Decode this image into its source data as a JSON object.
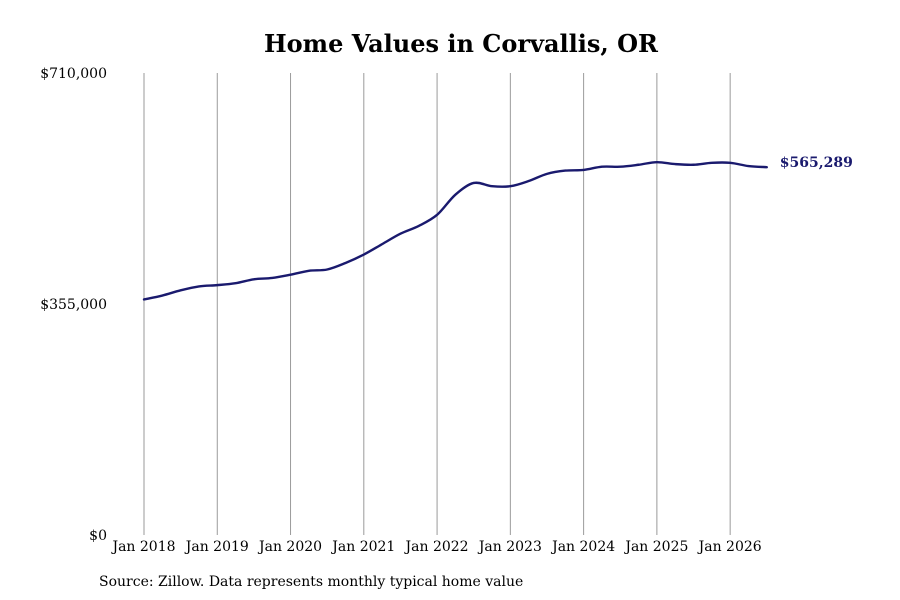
{
  "chart_data": {
    "type": "line",
    "title": "Home Values in Corvallis, OR",
    "xlabel": "",
    "ylabel": "",
    "source_note": "Source: Zillow. Data represents monthly typical home value",
    "ylim": [
      0,
      710000
    ],
    "y_ticks": [
      {
        "value": 0,
        "label": "$0"
      },
      {
        "value": 355000,
        "label": "$355,000"
      },
      {
        "value": 710000,
        "label": "$710,000"
      }
    ],
    "x_ticks": [
      {
        "value": "2018-01",
        "label": "Jan 2018"
      },
      {
        "value": "2019-01",
        "label": "Jan 2019"
      },
      {
        "value": "2020-01",
        "label": "Jan 2020"
      },
      {
        "value": "2021-01",
        "label": "Jan 2021"
      },
      {
        "value": "2022-01",
        "label": "Jan 2022"
      },
      {
        "value": "2023-01",
        "label": "Jan 2023"
      },
      {
        "value": "2024-01",
        "label": "Jan 2024"
      },
      {
        "value": "2025-01",
        "label": "Jan 2025"
      },
      {
        "value": "2026-01",
        "label": "Jan 2026"
      }
    ],
    "xlim": [
      "2018-01",
      "2026-09"
    ],
    "grid": {
      "vertical": true,
      "horizontal": false
    },
    "series": [
      {
        "color": "#1a1a6e",
        "end_label": "$565,289",
        "points": [
          {
            "x": "2018-01",
            "y": 362000
          },
          {
            "x": "2018-04",
            "y": 368000
          },
          {
            "x": "2018-07",
            "y": 376000
          },
          {
            "x": "2018-10",
            "y": 382000
          },
          {
            "x": "2019-01",
            "y": 384000
          },
          {
            "x": "2019-04",
            "y": 387000
          },
          {
            "x": "2019-07",
            "y": 393000
          },
          {
            "x": "2019-10",
            "y": 395000
          },
          {
            "x": "2020-01",
            "y": 400000
          },
          {
            "x": "2020-04",
            "y": 406000
          },
          {
            "x": "2020-07",
            "y": 408000
          },
          {
            "x": "2020-10",
            "y": 418000
          },
          {
            "x": "2021-01",
            "y": 431000
          },
          {
            "x": "2021-04",
            "y": 447000
          },
          {
            "x": "2021-07",
            "y": 463000
          },
          {
            "x": "2021-10",
            "y": 475000
          },
          {
            "x": "2022-01",
            "y": 492000
          },
          {
            "x": "2022-04",
            "y": 523000
          },
          {
            "x": "2022-07",
            "y": 541000
          },
          {
            "x": "2022-10",
            "y": 536000
          },
          {
            "x": "2023-01",
            "y": 536000
          },
          {
            "x": "2023-04",
            "y": 544000
          },
          {
            "x": "2023-07",
            "y": 555000
          },
          {
            "x": "2023-10",
            "y": 560000
          },
          {
            "x": "2024-01",
            "y": 561000
          },
          {
            "x": "2024-04",
            "y": 566000
          },
          {
            "x": "2024-07",
            "y": 566000
          },
          {
            "x": "2024-10",
            "y": 569000
          },
          {
            "x": "2025-01",
            "y": 573000
          },
          {
            "x": "2025-04",
            "y": 570000
          },
          {
            "x": "2025-07",
            "y": 569000
          },
          {
            "x": "2025-10",
            "y": 572000
          },
          {
            "x": "2026-01",
            "y": 572000
          },
          {
            "x": "2026-04",
            "y": 567000
          },
          {
            "x": "2026-07",
            "y": 565289
          }
        ]
      }
    ]
  }
}
